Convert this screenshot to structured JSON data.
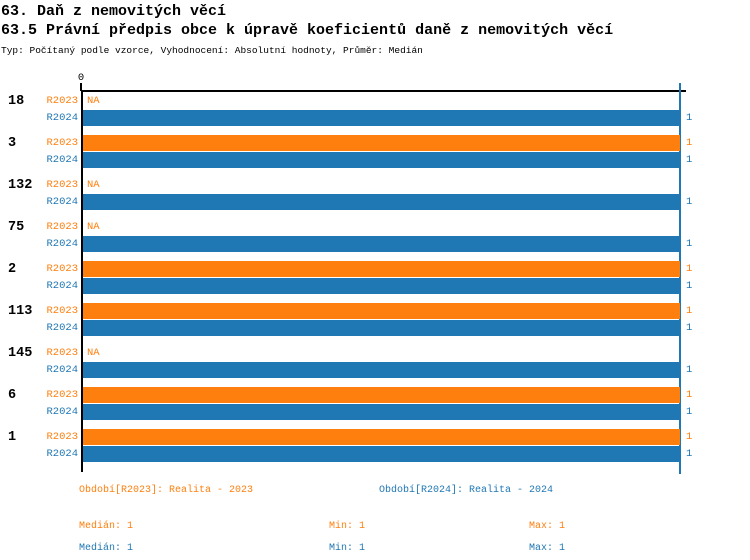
{
  "chart_data": {
    "type": "bar",
    "orientation": "horizontal",
    "title": "63. Daň z nemovitých věcí",
    "subtitle": "63.5 Právní předpis obce k úpravě koeficientů daně z nemovitých věcí",
    "meta": "Typ: Počítaný podle vzorce, Vyhodnocení: Absolutní hodnoty, Průměr: Medián",
    "xlim": [
      0,
      1
    ],
    "x_ticks": [
      {
        "value": 0,
        "label": "0"
      }
    ],
    "grid": false,
    "legend_position": "bottom",
    "na_label": "NA",
    "reference_line": {
      "value": 1,
      "color": "#1f77b4"
    },
    "categories": [
      "18",
      "3",
      "132",
      "75",
      "2",
      "113",
      "145",
      "6",
      "1"
    ],
    "series": [
      {
        "id": "r2023",
        "short_label": "R2023",
        "name": "Období[R2023]: Realita - 2023",
        "color": "#ff7f0e",
        "values": [
          null,
          1,
          null,
          null,
          1,
          1,
          null,
          1,
          1
        ]
      },
      {
        "id": "r2024",
        "short_label": "R2024",
        "name": "Období[R2024]: Realita - 2024",
        "color": "#1f77b4",
        "values": [
          1,
          1,
          1,
          1,
          1,
          1,
          1,
          1,
          1
        ]
      }
    ],
    "stats": {
      "r2023": {
        "median": "Medián: 1",
        "min": "Min: 1",
        "max": "Max: 1"
      },
      "r2024": {
        "median": "Medián: 1",
        "min": "Min: 1",
        "max": "Max: 1"
      }
    }
  }
}
